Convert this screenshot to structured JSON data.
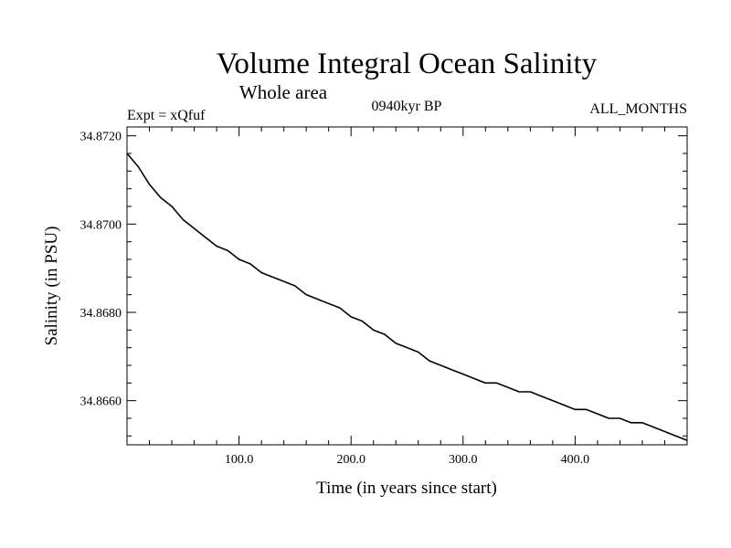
{
  "chart_data": {
    "type": "line",
    "title": "Volume Integral Ocean Salinity",
    "subtitle": "Whole area",
    "left_annotation": "Expt = xQfuf",
    "center_annotation": "0940kyr BP",
    "right_annotation": "ALL_MONTHS",
    "xlabel": "Time (in years since start)",
    "ylabel": "Salinity (in PSU)",
    "xlim": [
      0,
      500
    ],
    "ylim": [
      34.865,
      34.8722
    ],
    "xticks": [
      100,
      200,
      300,
      400
    ],
    "xtick_labels": [
      "100.0",
      "200.0",
      "300.0",
      "400.0"
    ],
    "yticks": [
      34.866,
      34.868,
      34.87,
      34.872
    ],
    "ytick_labels": [
      "34.8660",
      "34.8680",
      "34.8700",
      "34.8720"
    ],
    "grid": false,
    "series": [
      {
        "name": "salinity",
        "color": "#000000",
        "x": [
          0,
          10,
          20,
          30,
          40,
          50,
          60,
          70,
          80,
          90,
          100,
          110,
          120,
          130,
          140,
          150,
          160,
          170,
          180,
          190,
          200,
          210,
          220,
          230,
          240,
          250,
          260,
          270,
          280,
          290,
          300,
          310,
          320,
          330,
          340,
          350,
          360,
          370,
          380,
          390,
          400,
          410,
          420,
          430,
          440,
          450,
          460,
          470,
          480,
          490,
          500
        ],
        "values": [
          34.8716,
          34.8713,
          34.8709,
          34.8706,
          34.8704,
          34.8701,
          34.8699,
          34.8697,
          34.8695,
          34.8694,
          34.8692,
          34.8691,
          34.8689,
          34.8688,
          34.8687,
          34.8686,
          34.8684,
          34.8683,
          34.8682,
          34.8681,
          34.8679,
          34.8678,
          34.8676,
          34.8675,
          34.8673,
          34.8672,
          34.8671,
          34.8669,
          34.8668,
          34.8667,
          34.8666,
          34.8665,
          34.8664,
          34.8664,
          34.8663,
          34.8662,
          34.8662,
          34.8661,
          34.866,
          34.8659,
          34.8658,
          34.8658,
          34.8657,
          34.8656,
          34.8656,
          34.8655,
          34.8655,
          34.8654,
          34.8653,
          34.8652,
          34.8651
        ]
      }
    ]
  }
}
